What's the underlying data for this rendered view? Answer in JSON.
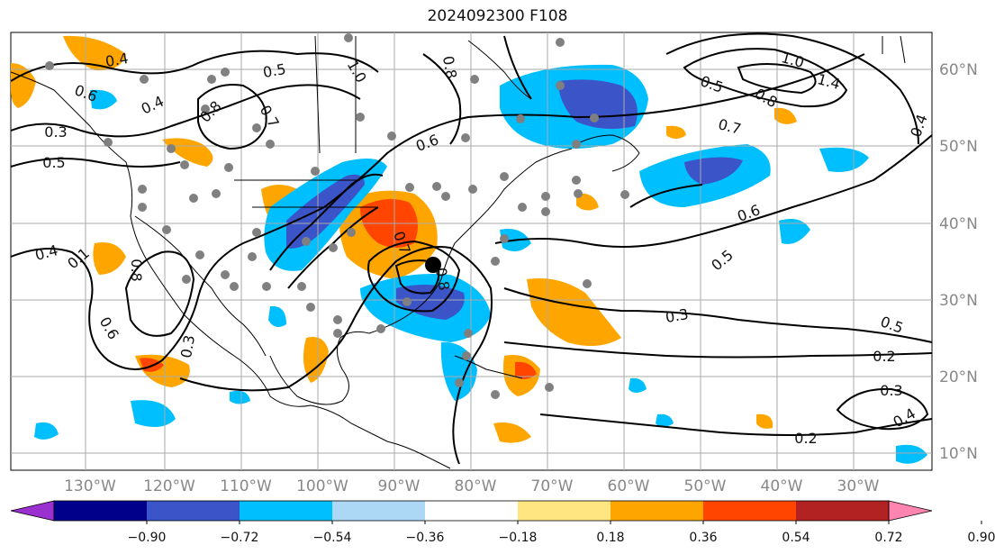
{
  "title": "2024092300 F108",
  "longitude_labels": [
    "130°W",
    "120°W",
    "110°W",
    "100°W",
    "90°W",
    "80°W",
    "70°W",
    "60°W",
    "50°W",
    "40°W",
    "30°W"
  ],
  "latitude_labels": [
    "60°N",
    "50°N",
    "40°N",
    "30°N",
    "20°N",
    "10°N"
  ],
  "colorbar": {
    "tick_labels": [
      "−0.90",
      "−0.72",
      "−0.54",
      "−0.36",
      "−0.18",
      "0.18",
      "0.36",
      "0.54",
      "0.72",
      "0.90"
    ],
    "colors": [
      "#9b30d0",
      "#00008b",
      "#3b54c8",
      "#00bfff",
      "#add8f5",
      "#ffffff",
      "#ffe680",
      "#ffa500",
      "#ff4500",
      "#b22222",
      "#ff85b0"
    ],
    "extend": "both"
  },
  "contour_labels": [
    "0.4",
    "0.5",
    "1.0",
    "0.8",
    "0.6",
    "0.4",
    "0.3",
    "0.5",
    "0.8",
    "0.7",
    "1.0",
    "1.4",
    "0.5",
    "0.8",
    "0.7",
    "0.4",
    "0.6",
    "0.6",
    "0.5",
    "0.1",
    "0.8",
    "0.6",
    "0.3",
    "0.4",
    "0.3",
    "0.5",
    "0.2",
    "0.3",
    "0.4",
    "0.2",
    "0.8",
    "0.7"
  ],
  "colors": {
    "strong_positive": "#ff4500",
    "positive": "#ffa500",
    "negative": "#00bfff",
    "strong_negative": "#3b54c8",
    "contour": "#000000",
    "grid": "#aaaaaa",
    "station_marker": "#808080"
  }
}
